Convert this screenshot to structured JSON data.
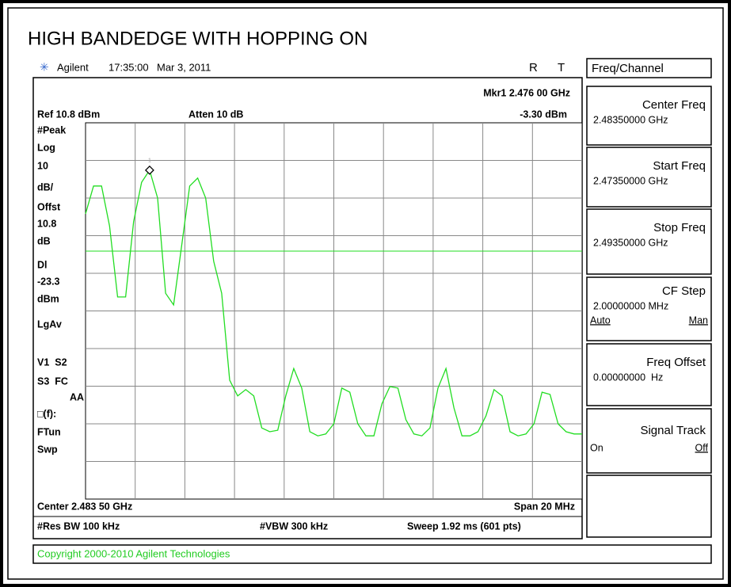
{
  "title": "HIGH BANDEDGE WITH HOPPING ON",
  "header": {
    "brand": "Agilent",
    "time": "17:35:00",
    "date": "Mar 3, 2011",
    "flags": [
      "R",
      "T"
    ]
  },
  "screen": {
    "marker": "Mkr1 2.476 00 GHz",
    "marker_level": "-3.30 dBm",
    "marker_id": "1",
    "ref": "Ref 10.8 dBm",
    "atten": "Atten 10 dB",
    "left_labels": [
      "#Peak",
      "Log",
      "10",
      "dB/",
      "Offst",
      "10.8",
      "dB",
      "Dl",
      "-23.3",
      "dBm",
      "LgAv",
      "V1  S2",
      "S3  FC",
      "AA",
      "□(f):",
      "FTun",
      "Swp"
    ],
    "center": "Center 2.483 50 GHz",
    "span": "Span 20 MHz",
    "res_bw": "#Res BW 100 kHz",
    "vbw": "#VBW 300 kHz",
    "sweep": "Sweep 1.92 ms (601 pts)"
  },
  "trace": {
    "ref_level": 10.8,
    "scale_per_div": 10,
    "divisions": 10,
    "display_line": -23.3,
    "values": [
      -13.4,
      -6.0,
      -6.0,
      -16.6,
      -35.5,
      -35.5,
      -15.5,
      -5.0,
      -1.8,
      -9.2,
      -34.5,
      -37.6,
      -21.8,
      -6.0,
      -3.9,
      -9.2,
      -26.0,
      -34.5,
      -57.6,
      -61.8,
      -60.1,
      -61.8,
      -70.3,
      -71.3,
      -70.9,
      -61.8,
      -54.5,
      -59.7,
      -71.3,
      -72.4,
      -71.9,
      -69.2,
      -59.7,
      -60.8,
      -69.2,
      -72.4,
      -72.4,
      -63.9,
      -59.3,
      -59.7,
      -68.1,
      -71.9,
      -72.4,
      -70.3,
      -59.7,
      -54.5,
      -65.0,
      -72.4,
      -72.4,
      -71.3,
      -67.1,
      -60.1,
      -61.8,
      -71.3,
      -72.4,
      -71.9,
      -69.2,
      -60.8,
      -61.4,
      -69.2,
      -71.3,
      -71.9,
      -71.9
    ]
  },
  "menu": {
    "title": "Freq/Channel",
    "softkeys": [
      {
        "label": "Center Freq",
        "value": "2.48350000 GHz"
      },
      {
        "label": "Start Freq",
        "value": "2.47350000 GHz"
      },
      {
        "label": "Stop Freq",
        "value": "2.49350000 GHz"
      },
      {
        "label": "CF Step",
        "value": "2.00000000 MHz",
        "options": [
          "Auto",
          "Man"
        ]
      },
      {
        "label": "Freq Offset",
        "value": "0.00000000  Hz"
      },
      {
        "label": "Signal Track",
        "options": [
          "On",
          "Off"
        ]
      }
    ]
  },
  "footer": "Copyright 2000-2010 Agilent Technologies"
}
